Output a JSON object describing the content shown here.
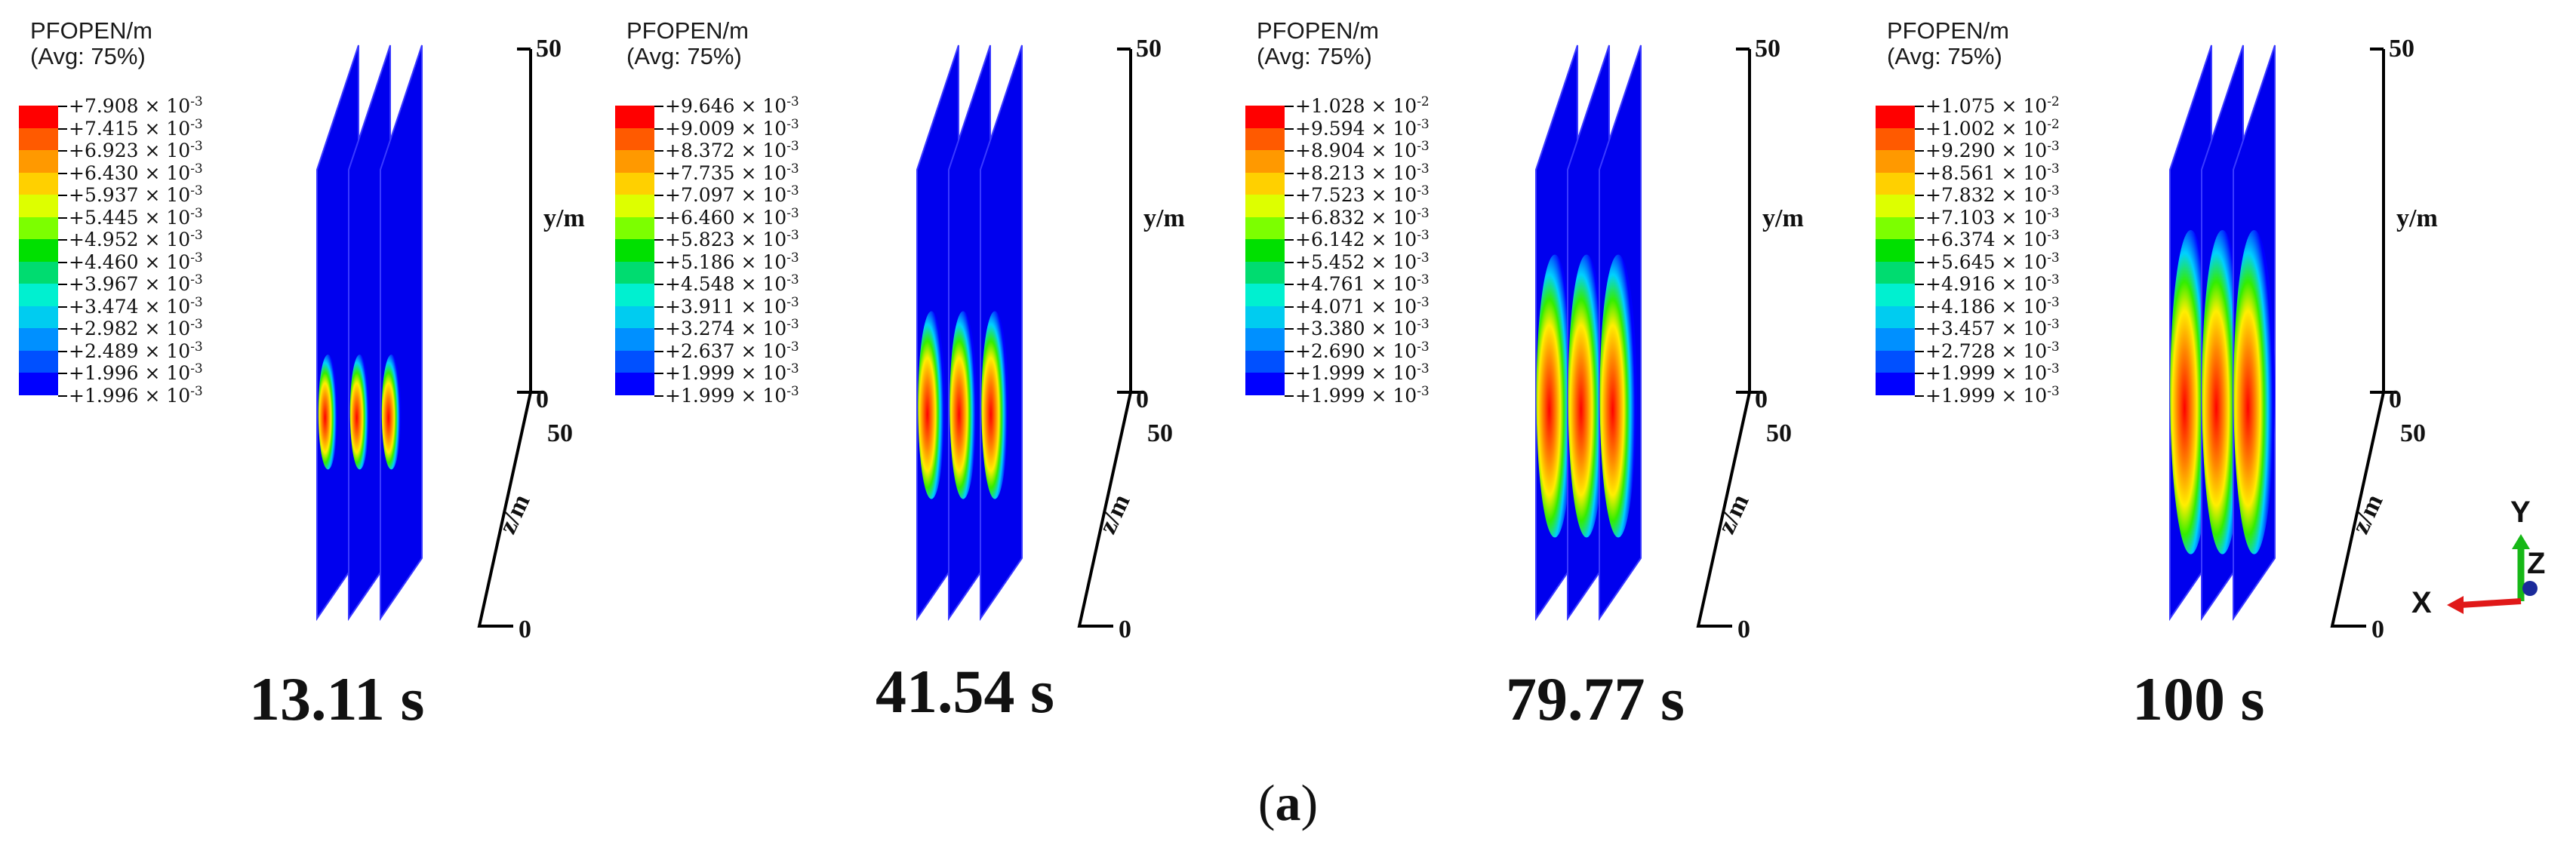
{
  "legend": {
    "title_line1": "PFOPEN/m",
    "title_line2": "(Avg: 75%)",
    "colors": [
      "#ff0000",
      "#ff5a00",
      "#ff9900",
      "#ffd000",
      "#ddff00",
      "#7cff00",
      "#00e000",
      "#00dc70",
      "#00f0d0",
      "#00ccf0",
      "#0090ff",
      "#0050ff",
      "#0000ff"
    ]
  },
  "panels": [
    {
      "time": "13.11 s",
      "values": [
        "+7.908",
        "+7.415",
        "+6.923",
        "+6.430",
        "+5.937",
        "+5.445",
        "+4.952",
        "+4.460",
        "+3.967",
        "+3.474",
        "+2.982",
        "+2.489",
        "+1.996"
      ],
      "exponents": [
        "-3",
        "-3",
        "-3",
        "-3",
        "-3",
        "-3",
        "-3",
        "-3",
        "-3",
        "-3",
        "-3",
        "-3",
        "-3"
      ],
      "fracture_extent": 0.22
    },
    {
      "time": "41.54 s",
      "values": [
        "+9.646",
        "+9.009",
        "+8.372",
        "+7.735",
        "+7.097",
        "+6.460",
        "+5.823",
        "+5.186",
        "+4.548",
        "+3.911",
        "+3.274",
        "+2.637",
        "+1.999"
      ],
      "exponents": [
        "-3",
        "-3",
        "-3",
        "-3",
        "-3",
        "-3",
        "-3",
        "-3",
        "-3",
        "-3",
        "-3",
        "-3",
        "-3"
      ],
      "fracture_extent": 0.45
    },
    {
      "time": "79.77 s",
      "values": [
        "+1.028",
        "+9.594",
        "+8.904",
        "+8.213",
        "+7.523",
        "+6.832",
        "+6.142",
        "+5.452",
        "+4.761",
        "+4.071",
        "+3.380",
        "+2.690",
        "+1.999"
      ],
      "exponents": [
        "-2",
        "-3",
        "-3",
        "-3",
        "-3",
        "-3",
        "-3",
        "-3",
        "-3",
        "-3",
        "-3",
        "-3",
        "-3"
      ],
      "fracture_extent": 0.75
    },
    {
      "time": "100 s",
      "values": [
        "+1.075",
        "+1.002",
        "+9.290",
        "+8.561",
        "+7.832",
        "+7.103",
        "+6.374",
        "+5.645",
        "+4.916",
        "+4.186",
        "+3.457",
        "+2.728",
        "+1.999"
      ],
      "exponents": [
        "-2",
        "-2",
        "-3",
        "-3",
        "-3",
        "-3",
        "-3",
        "-3",
        "-3",
        "-3",
        "-3",
        "-3",
        "-3"
      ],
      "fracture_extent": 0.88
    }
  ],
  "axes": {
    "y_label": "y/m",
    "z_label": "z/m",
    "y_top": "50",
    "y_bottom": "0",
    "z_top": "50",
    "z_bottom": "0"
  },
  "triad": {
    "x": "X",
    "y": "Y",
    "z": "Z"
  },
  "caption": {
    "open": "(",
    "letter": "a",
    "close": ")"
  }
}
